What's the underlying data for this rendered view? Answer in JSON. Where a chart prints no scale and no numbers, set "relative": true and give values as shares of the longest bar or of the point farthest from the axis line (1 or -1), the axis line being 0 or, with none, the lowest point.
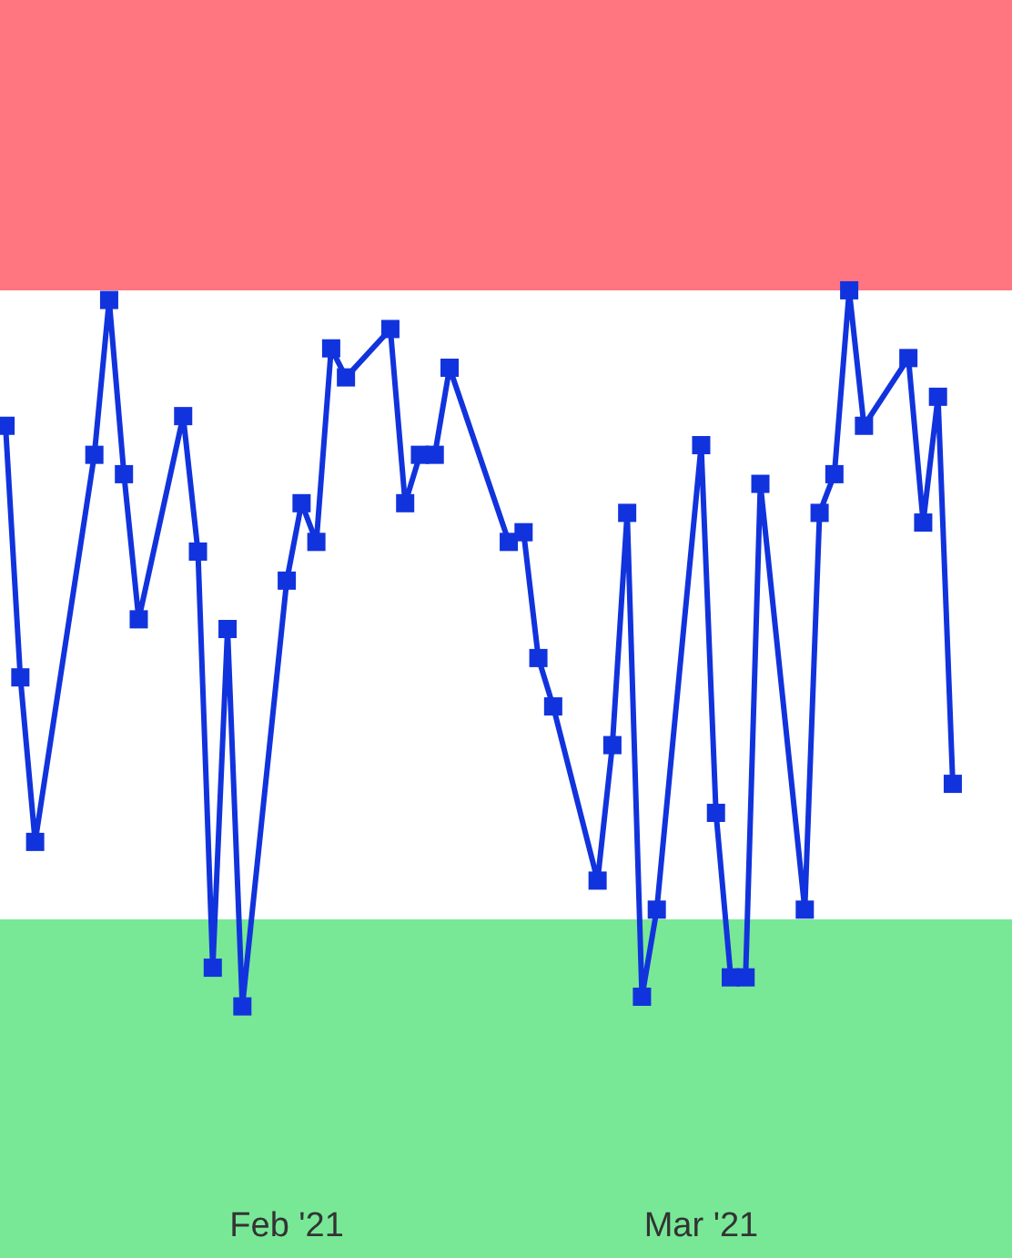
{
  "chart_data": {
    "type": "line",
    "relative": true,
    "marker": "square",
    "line_style": "solid",
    "grid": false,
    "legend": false,
    "x": [
      "2021-01-13",
      "2021-01-14",
      "2021-01-15",
      "2021-01-19",
      "2021-01-20",
      "2021-01-21",
      "2021-01-22",
      "2021-01-25",
      "2021-01-26",
      "2021-01-27",
      "2021-01-28",
      "2021-01-29",
      "2021-02-01",
      "2021-02-02",
      "2021-02-03",
      "2021-02-04",
      "2021-02-05",
      "2021-02-08",
      "2021-02-09",
      "2021-02-10",
      "2021-02-11",
      "2021-02-12",
      "2021-02-16",
      "2021-02-17",
      "2021-02-18",
      "2021-02-19",
      "2021-02-22",
      "2021-02-23",
      "2021-02-24",
      "2021-02-25",
      "2021-02-26",
      "2021-03-01",
      "2021-03-02",
      "2021-03-03",
      "2021-03-04",
      "2021-03-05",
      "2021-03-08",
      "2021-03-09",
      "2021-03-10",
      "2021-03-11",
      "2021-03-12",
      "2021-03-15",
      "2021-03-16",
      "2021-03-17",
      "2021-03-18"
    ],
    "series": [
      {
        "color": "#1133dd",
        "values": [
          0.86,
          0.6,
          0.43,
          0.83,
          0.99,
          0.81,
          0.66,
          0.87,
          0.73,
          0.3,
          0.65,
          0.26,
          0.7,
          0.78,
          0.74,
          0.94,
          0.91,
          0.96,
          0.78,
          0.83,
          0.83,
          0.92,
          0.74,
          0.75,
          0.62,
          0.57,
          0.39,
          0.53,
          0.77,
          0.27,
          0.36,
          0.84,
          0.46,
          0.29,
          0.29,
          0.8,
          0.36,
          0.77,
          0.81,
          1,
          0.86,
          0.93,
          0.76,
          0.89,
          0.49
        ]
      }
    ],
    "xlim": [
      "2021-01-12T15:00",
      "2021-03-22"
    ],
    "xticks": [
      {
        "value": "2021-02-01",
        "label": "Feb '21"
      },
      {
        "value": "2021-03-01",
        "label": "Mar '21"
      }
    ],
    "bands": [
      {
        "axis": "y",
        "from": 1,
        "to": 1.3,
        "color": "#ff7580"
      },
      {
        "axis": "y",
        "from": 0,
        "to": 0.35,
        "color": "#78e896"
      }
    ]
  }
}
